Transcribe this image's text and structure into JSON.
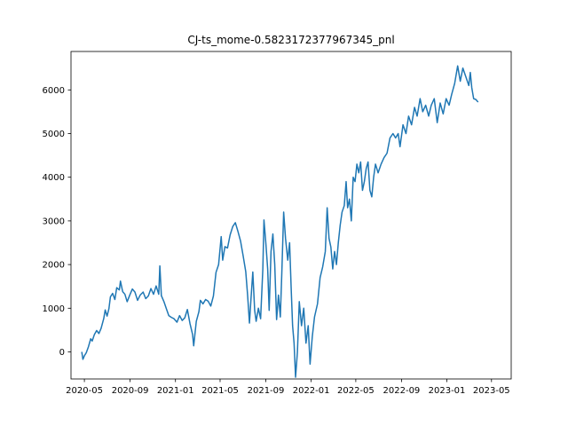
{
  "chart_data": {
    "type": "line",
    "title": "CJ-ts_mome-0.5823172377967345_pnl",
    "xlabel": "",
    "ylabel": "",
    "x_ticks": [
      "2020-05",
      "2020-09",
      "2021-01",
      "2021-05",
      "2021-09",
      "2022-01",
      "2022-05",
      "2022-09",
      "2023-01",
      "2023-05"
    ],
    "y_ticks": [
      "0",
      "1000",
      "2000",
      "3000",
      "4000",
      "5000",
      "6000"
    ],
    "xlim": [
      "2020-03-26",
      "2023-06-23"
    ],
    "ylim": [
      -620,
      6880
    ],
    "grid": false,
    "legend": "none",
    "color": "#1f77b4",
    "series": [
      {
        "name": "",
        "points": [
          [
            "2020-04-24",
            0
          ],
          [
            "2020-04-27",
            -170
          ],
          [
            "2020-05-01",
            -90
          ],
          [
            "2020-05-06",
            -20
          ],
          [
            "2020-05-12",
            120
          ],
          [
            "2020-05-18",
            300
          ],
          [
            "2020-05-22",
            250
          ],
          [
            "2020-05-28",
            400
          ],
          [
            "2020-06-03",
            490
          ],
          [
            "2020-06-09",
            420
          ],
          [
            "2020-06-15",
            540
          ],
          [
            "2020-06-22",
            760
          ],
          [
            "2020-06-26",
            960
          ],
          [
            "2020-07-01",
            820
          ],
          [
            "2020-07-06",
            990
          ],
          [
            "2020-07-10",
            1260
          ],
          [
            "2020-07-16",
            1340
          ],
          [
            "2020-07-22",
            1200
          ],
          [
            "2020-07-27",
            1470
          ],
          [
            "2020-08-03",
            1420
          ],
          [
            "2020-08-06",
            1620
          ],
          [
            "2020-08-12",
            1380
          ],
          [
            "2020-08-18",
            1320
          ],
          [
            "2020-08-24",
            1150
          ],
          [
            "2020-08-31",
            1300
          ],
          [
            "2020-09-07",
            1440
          ],
          [
            "2020-09-14",
            1370
          ],
          [
            "2020-09-21",
            1180
          ],
          [
            "2020-09-28",
            1300
          ],
          [
            "2020-10-06",
            1370
          ],
          [
            "2020-10-13",
            1220
          ],
          [
            "2020-10-20",
            1280
          ],
          [
            "2020-10-27",
            1450
          ],
          [
            "2020-11-03",
            1320
          ],
          [
            "2020-11-10",
            1510
          ],
          [
            "2020-11-17",
            1320
          ],
          [
            "2020-11-20",
            1970
          ],
          [
            "2020-11-24",
            1290
          ],
          [
            "2020-12-01",
            1150
          ],
          [
            "2020-12-07",
            1000
          ],
          [
            "2020-12-14",
            830
          ],
          [
            "2020-12-21",
            790
          ],
          [
            "2020-12-28",
            760
          ],
          [
            "2021-01-05",
            680
          ],
          [
            "2021-01-12",
            830
          ],
          [
            "2021-01-19",
            720
          ],
          [
            "2021-01-26",
            780
          ],
          [
            "2021-02-02",
            970
          ],
          [
            "2021-02-09",
            650
          ],
          [
            "2021-02-16",
            400
          ],
          [
            "2021-02-19",
            140
          ],
          [
            "2021-02-26",
            700
          ],
          [
            "2021-03-05",
            920
          ],
          [
            "2021-03-09",
            1180
          ],
          [
            "2021-03-16",
            1100
          ],
          [
            "2021-03-23",
            1200
          ],
          [
            "2021-03-30",
            1160
          ],
          [
            "2021-04-06",
            1050
          ],
          [
            "2021-04-13",
            1280
          ],
          [
            "2021-04-20",
            1820
          ],
          [
            "2021-04-27",
            2000
          ],
          [
            "2021-05-04",
            2640
          ],
          [
            "2021-05-08",
            2100
          ],
          [
            "2021-05-14",
            2410
          ],
          [
            "2021-05-21",
            2380
          ],
          [
            "2021-05-28",
            2680
          ],
          [
            "2021-06-04",
            2870
          ],
          [
            "2021-06-11",
            2960
          ],
          [
            "2021-06-18",
            2760
          ],
          [
            "2021-06-25",
            2540
          ],
          [
            "2021-07-02",
            2200
          ],
          [
            "2021-07-09",
            1840
          ],
          [
            "2021-07-14",
            1300
          ],
          [
            "2021-07-19",
            660
          ],
          [
            "2021-07-23",
            1200
          ],
          [
            "2021-07-28",
            1830
          ],
          [
            "2021-08-02",
            950
          ],
          [
            "2021-08-06",
            700
          ],
          [
            "2021-08-12",
            1000
          ],
          [
            "2021-08-18",
            760
          ],
          [
            "2021-08-24",
            1900
          ],
          [
            "2021-08-27",
            3020
          ],
          [
            "2021-09-01",
            2500
          ],
          [
            "2021-09-06",
            1900
          ],
          [
            "2021-09-10",
            950
          ],
          [
            "2021-09-15",
            2300
          ],
          [
            "2021-09-20",
            2700
          ],
          [
            "2021-09-25",
            2000
          ],
          [
            "2021-09-30",
            740
          ],
          [
            "2021-10-05",
            1300
          ],
          [
            "2021-10-10",
            800
          ],
          [
            "2021-10-14",
            1800
          ],
          [
            "2021-10-19",
            3200
          ],
          [
            "2021-10-24",
            2600
          ],
          [
            "2021-10-30",
            2100
          ],
          [
            "2021-11-04",
            2500
          ],
          [
            "2021-11-08",
            1500
          ],
          [
            "2021-11-12",
            600
          ],
          [
            "2021-11-16",
            200
          ],
          [
            "2021-11-20",
            -580
          ],
          [
            "2021-11-25",
            0
          ],
          [
            "2021-11-30",
            1150
          ],
          [
            "2021-12-06",
            600
          ],
          [
            "2021-12-12",
            1000
          ],
          [
            "2021-12-18",
            200
          ],
          [
            "2021-12-24",
            600
          ],
          [
            "2021-12-29",
            -280
          ],
          [
            "2022-01-04",
            350
          ],
          [
            "2022-01-10",
            800
          ],
          [
            "2022-01-18",
            1100
          ],
          [
            "2022-01-25",
            1700
          ],
          [
            "2022-02-01",
            1950
          ],
          [
            "2022-02-08",
            2300
          ],
          [
            "2022-02-13",
            3300
          ],
          [
            "2022-02-18",
            2600
          ],
          [
            "2022-02-23",
            2400
          ],
          [
            "2022-02-28",
            1900
          ],
          [
            "2022-03-05",
            2300
          ],
          [
            "2022-03-10",
            2000
          ],
          [
            "2022-03-15",
            2500
          ],
          [
            "2022-03-20",
            2900
          ],
          [
            "2022-03-25",
            3200
          ],
          [
            "2022-03-31",
            3350
          ],
          [
            "2022-04-05",
            3900
          ],
          [
            "2022-04-09",
            3300
          ],
          [
            "2022-04-14",
            3500
          ],
          [
            "2022-04-19",
            3000
          ],
          [
            "2022-04-24",
            4000
          ],
          [
            "2022-04-29",
            3900
          ],
          [
            "2022-05-04",
            4300
          ],
          [
            "2022-05-09",
            4100
          ],
          [
            "2022-05-14",
            4350
          ],
          [
            "2022-05-19",
            3700
          ],
          [
            "2022-05-24",
            3900
          ],
          [
            "2022-05-29",
            4200
          ],
          [
            "2022-06-03",
            4350
          ],
          [
            "2022-06-08",
            3700
          ],
          [
            "2022-06-13",
            3550
          ],
          [
            "2022-06-18",
            4000
          ],
          [
            "2022-06-23",
            4300
          ],
          [
            "2022-06-30",
            4100
          ],
          [
            "2022-07-08",
            4300
          ],
          [
            "2022-07-16",
            4450
          ],
          [
            "2022-07-24",
            4550
          ],
          [
            "2022-08-01",
            4900
          ],
          [
            "2022-08-09",
            5000
          ],
          [
            "2022-08-16",
            4900
          ],
          [
            "2022-08-23",
            5000
          ],
          [
            "2022-08-28",
            4700
          ],
          [
            "2022-09-05",
            5200
          ],
          [
            "2022-09-13",
            5000
          ],
          [
            "2022-09-20",
            5400
          ],
          [
            "2022-09-28",
            5200
          ],
          [
            "2022-10-06",
            5600
          ],
          [
            "2022-10-13",
            5400
          ],
          [
            "2022-10-21",
            5800
          ],
          [
            "2022-10-28",
            5500
          ],
          [
            "2022-11-05",
            5650
          ],
          [
            "2022-11-13",
            5400
          ],
          [
            "2022-11-20",
            5650
          ],
          [
            "2022-11-28",
            5800
          ],
          [
            "2022-12-06",
            5250
          ],
          [
            "2022-12-14",
            5700
          ],
          [
            "2022-12-22",
            5450
          ],
          [
            "2022-12-30",
            5800
          ],
          [
            "2023-01-07",
            5650
          ],
          [
            "2023-01-14",
            5900
          ],
          [
            "2023-01-22",
            6150
          ],
          [
            "2023-01-30",
            6550
          ],
          [
            "2023-02-06",
            6200
          ],
          [
            "2023-02-13",
            6500
          ],
          [
            "2023-02-21",
            6300
          ],
          [
            "2023-03-01",
            6100
          ],
          [
            "2023-03-05",
            6400
          ],
          [
            "2023-03-09",
            6050
          ],
          [
            "2023-03-14",
            5800
          ],
          [
            "2023-03-20",
            5780
          ],
          [
            "2023-03-26",
            5720
          ]
        ]
      }
    ]
  }
}
